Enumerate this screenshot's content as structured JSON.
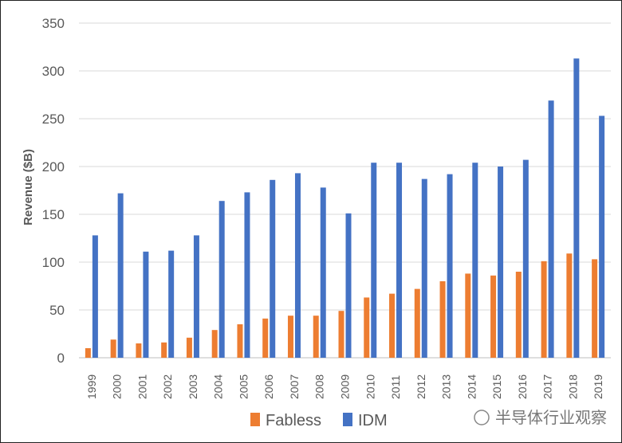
{
  "chart_data": {
    "type": "bar",
    "title": "",
    "xlabel": "",
    "ylabel": "Revenue ($B)",
    "ylim": [
      0,
      350
    ],
    "yticks": [
      0,
      50,
      100,
      150,
      200,
      250,
      300,
      350
    ],
    "grid": true,
    "legend_position": "bottom",
    "categories": [
      "1999",
      "2000",
      "2001",
      "2002",
      "2003",
      "2004",
      "2005",
      "2006",
      "2007",
      "2008",
      "2009",
      "2010",
      "2011",
      "2012",
      "2013",
      "2014",
      "2015",
      "2016",
      "2017",
      "2018",
      "2019"
    ],
    "series": [
      {
        "name": "Fabless",
        "color": "#ED7D31",
        "values": [
          10,
          19,
          15,
          16,
          21,
          29,
          35,
          41,
          44,
          44,
          49,
          63,
          67,
          72,
          80,
          88,
          86,
          90,
          101,
          109,
          103
        ]
      },
      {
        "name": "IDM",
        "color": "#4472C4",
        "values": [
          128,
          172,
          111,
          112,
          128,
          164,
          173,
          186,
          193,
          178,
          151,
          204,
          204,
          187,
          192,
          204,
          200,
          207,
          269,
          313,
          253
        ]
      }
    ]
  },
  "watermark": "半导体行业观察"
}
